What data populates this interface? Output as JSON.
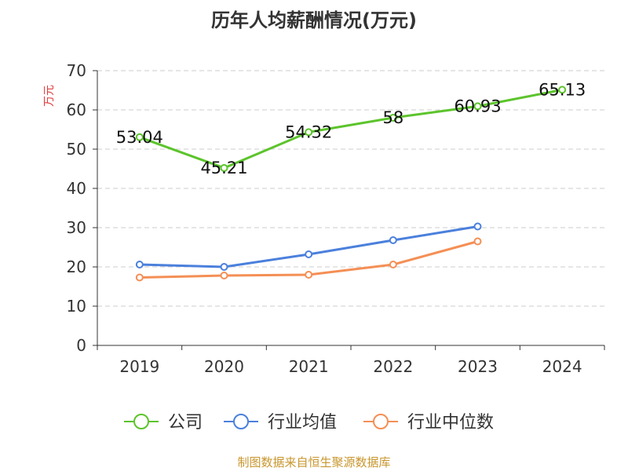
{
  "chart_data": {
    "type": "line",
    "title": "历年人均薪酬情况(万元)",
    "ylabel": "万元",
    "xlabel": "",
    "categories": [
      "2019",
      "2020",
      "2021",
      "2022",
      "2023",
      "2024"
    ],
    "ylim": [
      0,
      70
    ],
    "yticks": [
      0,
      10,
      20,
      30,
      40,
      50,
      60,
      70
    ],
    "grid": true,
    "legend_position": "bottom",
    "series": [
      {
        "name": "公司",
        "color": "#5cc42c",
        "values": [
          53.04,
          45.21,
          54.32,
          58,
          60.93,
          65.13
        ],
        "labels": [
          "53.04",
          "45.21",
          "54.32",
          "58",
          "60.93",
          "65.13"
        ]
      },
      {
        "name": "行业均值",
        "color": "#4b80dc",
        "values": [
          20.6,
          20.0,
          23.2,
          26.8,
          30.3,
          null
        ]
      },
      {
        "name": "行业中位数",
        "color": "#f48f55",
        "values": [
          17.3,
          17.8,
          18.0,
          20.6,
          26.5,
          null
        ]
      }
    ]
  },
  "source": {
    "text": "制图数据来自恒生聚源数据库",
    "color": "#c8962e"
  },
  "colors": {
    "axis": "#333333",
    "grid": "#cccccc",
    "ylabel": "#e03c3c"
  }
}
